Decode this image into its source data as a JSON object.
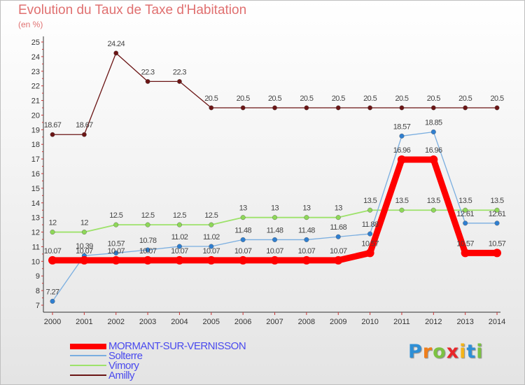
{
  "chart_data": {
    "type": "line",
    "title": "Evolution du Taux de Taxe d'Habitation",
    "subtitle": "(en %)",
    "xlabel": "",
    "ylabel": "",
    "categories": [
      "2000",
      "2001",
      "2002",
      "2003",
      "2004",
      "2005",
      "2006",
      "2007",
      "2008",
      "2009",
      "2010",
      "2011",
      "2012",
      "2013",
      "2014"
    ],
    "ylim": [
      7,
      25
    ],
    "yticks": [
      "7",
      "8",
      "9",
      "10",
      "11",
      "12",
      "13",
      "14",
      "15",
      "16",
      "17",
      "18",
      "19",
      "20",
      "21",
      "22",
      "23",
      "24",
      "25"
    ],
    "series": [
      {
        "name": "Amilly",
        "color": "#6b1515",
        "values": [
          18.67,
          18.67,
          24.24,
          22.3,
          22.3,
          20.5,
          20.5,
          20.5,
          20.5,
          20.5,
          20.5,
          20.5,
          20.5,
          20.5,
          20.5
        ],
        "labels": [
          "18.67",
          "18.67",
          "24.24",
          "22.3",
          "22.3",
          "20.5",
          "20.5",
          "20.5",
          "20.5",
          "20.5",
          "20.5",
          "20.5",
          "20.5",
          "20.5",
          "20.5"
        ]
      },
      {
        "name": "Vimory",
        "color": "#9de26a",
        "values": [
          12,
          12,
          12.5,
          12.5,
          12.5,
          12.5,
          13,
          13,
          13,
          13,
          13.5,
          13.5,
          13.5,
          13.5,
          13.5
        ],
        "labels": [
          "12",
          "12",
          "12.5",
          "12.5",
          "12.5",
          "12.5",
          "13",
          "13",
          "13",
          "13",
          "13.5",
          "13.5",
          "13.5",
          "13.5",
          "13.5"
        ]
      },
      {
        "name": "Solterre",
        "color": "#7aaee0",
        "values": [
          7.27,
          10.39,
          10.57,
          10.78,
          11.02,
          11.02,
          11.48,
          11.48,
          11.48,
          11.68,
          11.88,
          18.57,
          18.85,
          12.61,
          12.61
        ],
        "labels": [
          "7.27",
          "10.39",
          "10.57",
          "10.78",
          "11.02",
          "11.02",
          "11.48",
          "11.48",
          "11.48",
          "11.68",
          "11.88",
          "18.57",
          "18.85",
          "12.61",
          "12.61"
        ]
      },
      {
        "name": "MORMANT-SUR-VERNISSON",
        "color": "#ff0000",
        "values": [
          10.07,
          10.07,
          10.07,
          10.07,
          10.07,
          10.07,
          10.07,
          10.07,
          10.07,
          10.07,
          10.57,
          16.96,
          16.96,
          10.57,
          10.57
        ],
        "labels": [
          "10.07",
          "10.07",
          "10.07",
          "10.07",
          "10.07",
          "10.07",
          "10.07",
          "10.07",
          "10.07",
          "10.07",
          "10.57",
          "16.96",
          "16.96",
          "10.57",
          "10.57"
        ]
      }
    ],
    "legend": [
      "MORMANT-SUR-VERNISSON",
      "Solterre",
      "Vimory",
      "Amilly"
    ],
    "legend_position": "bottom-left",
    "grid": false
  },
  "brand": {
    "logo_letters": [
      "P",
      "r",
      "o",
      "x",
      "i",
      "t",
      "i"
    ]
  },
  "colors": {
    "title": "#e07070",
    "axis": "#cc3333",
    "legend_text": "#4a4aee"
  }
}
